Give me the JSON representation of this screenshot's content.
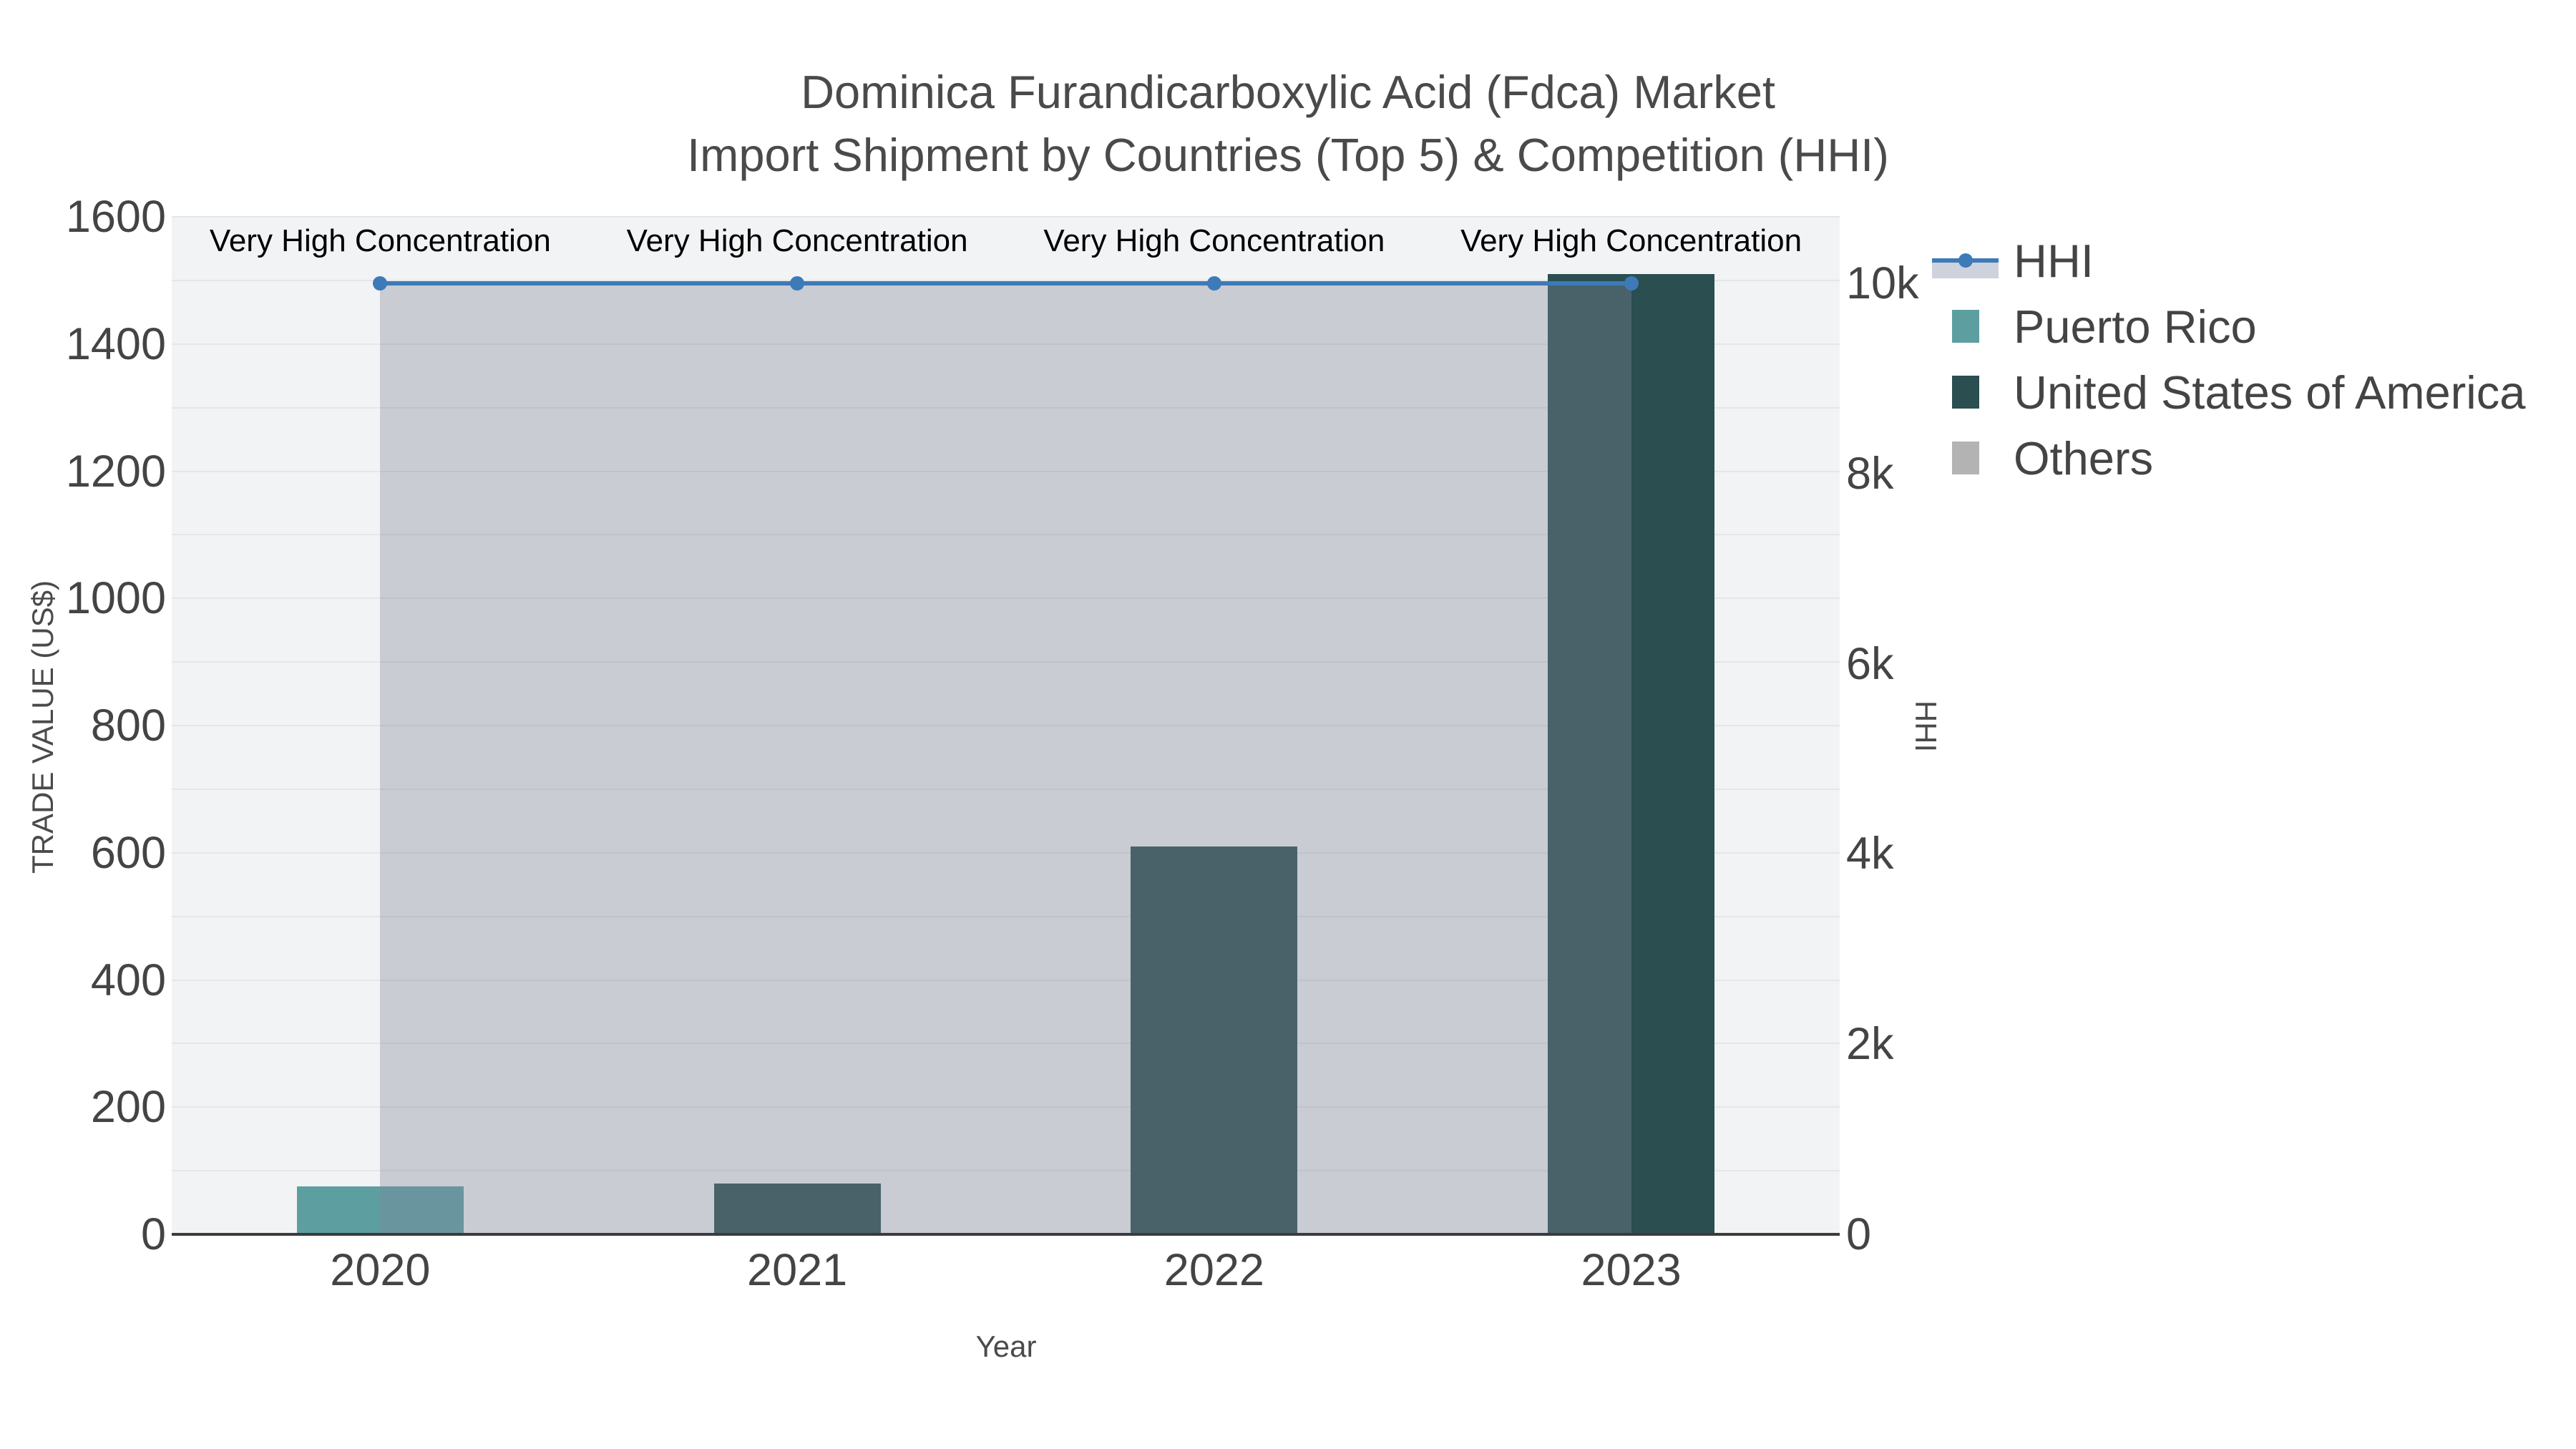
{
  "title": {
    "line1": "Dominica Furandicarboxylic Acid (Fdca) Market",
    "line2": "Import Shipment by Countries (Top 5) & Competition (HHI)"
  },
  "axes": {
    "x": {
      "title": "Year",
      "ticks": [
        "2020",
        "2021",
        "2022",
        "2023"
      ]
    },
    "y_left": {
      "title": "TRADE VALUE (US$)",
      "ticks": [
        {
          "label": "0",
          "value": 0
        },
        {
          "label": "200",
          "value": 200
        },
        {
          "label": "400",
          "value": 400
        },
        {
          "label": "600",
          "value": 600
        },
        {
          "label": "800",
          "value": 800
        },
        {
          "label": "1000",
          "value": 1000
        },
        {
          "label": "1200",
          "value": 1200
        },
        {
          "label": "1400",
          "value": 1400
        },
        {
          "label": "1600",
          "value": 1600
        }
      ]
    },
    "y_right": {
      "title": "HHI",
      "ticks": [
        {
          "label": "0",
          "value": 0
        },
        {
          "label": "2k",
          "value": 2000
        },
        {
          "label": "4k",
          "value": 4000
        },
        {
          "label": "6k",
          "value": 6000
        },
        {
          "label": "8k",
          "value": 8000
        },
        {
          "label": "10k",
          "value": 10000
        }
      ]
    }
  },
  "legend": {
    "items": [
      {
        "label": "HHI",
        "glyph": "line",
        "color": "#3d7ab8",
        "band_color": "#cdd2dc"
      },
      {
        "label": "Puerto Rico",
        "glyph": "swatch",
        "color": "#5d9fa1"
      },
      {
        "label": "United States of America",
        "glyph": "swatch",
        "color": "#2b4e50"
      },
      {
        "label": "Others",
        "glyph": "swatch",
        "color": "#b3b3b3"
      }
    ]
  },
  "chart_data": {
    "type": "bar",
    "title": "Dominica Furandicarboxylic Acid (Fdca) Market Import Shipment by Countries (Top 5) & Competition (HHI)",
    "categories": [
      "2020",
      "2021",
      "2022",
      "2023"
    ],
    "series": [
      {
        "name": "Puerto Rico",
        "type": "bar",
        "yaxis": "left",
        "color": "#5d9fa1",
        "values": [
          75,
          null,
          null,
          null
        ]
      },
      {
        "name": "United States of America",
        "type": "bar",
        "yaxis": "left",
        "color": "#2b4e50",
        "values": [
          null,
          80,
          610,
          1510
        ]
      },
      {
        "name": "Others",
        "type": "bar",
        "yaxis": "left",
        "color": "#b3b3b3",
        "values": [
          null,
          null,
          null,
          null
        ]
      },
      {
        "name": "HHI",
        "type": "line",
        "yaxis": "right",
        "color": "#3d7ab8",
        "fill": "rgba(127,136,153,0.36)",
        "values": [
          10000,
          10000,
          10000,
          10000
        ]
      }
    ],
    "annotations": [
      {
        "x": "2020",
        "text": "Very High Concentration"
      },
      {
        "x": "2021",
        "text": "Very High Concentration"
      },
      {
        "x": "2022",
        "text": "Very High Concentration"
      },
      {
        "x": "2023",
        "text": "Very High Concentration"
      }
    ],
    "xlabel": "Year",
    "ylabel": "TRADE VALUE (US$)",
    "ylabel_right": "HHI",
    "ylim_left": [
      0,
      1600
    ],
    "ylim_right": [
      0,
      10700
    ],
    "grid": "horizontal gridlines every 100 units (left axis)",
    "legend_position": "right"
  },
  "colors": {
    "plot_bg": "#f2f3f4",
    "gridline": "#e5e6e7",
    "axis_line": "#3b3b3b",
    "tick_text": "#444444",
    "title_text": "#4a4a4a",
    "annotation_text": "#000000"
  }
}
